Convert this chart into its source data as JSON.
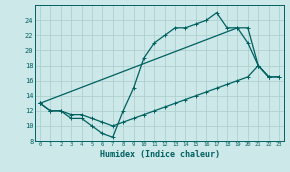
{
  "xlabel": "Humidex (Indice chaleur)",
  "color": "#006060",
  "bg_color": "#cce8e8",
  "grid_color": "#aacccc",
  "ylim": [
    8,
    26
  ],
  "yticks": [
    8,
    10,
    12,
    14,
    16,
    18,
    20,
    22,
    24
  ],
  "xlim": [
    -0.5,
    23.5
  ],
  "line1_x": [
    0,
    1,
    2,
    3,
    4,
    5,
    6,
    7,
    8,
    9,
    10,
    11,
    12,
    13,
    14,
    15,
    16,
    17,
    18,
    19,
    20,
    21,
    22
  ],
  "line1_y": [
    13,
    12,
    12,
    11,
    11,
    10,
    9,
    8.5,
    12,
    15,
    19,
    21,
    22,
    23,
    23,
    23.5,
    24,
    25,
    23,
    23,
    21,
    18,
    16.5
  ],
  "line2_x": [
    0,
    1,
    2,
    3,
    4,
    5,
    6,
    7,
    8,
    9,
    10,
    11,
    12,
    13,
    14,
    15,
    16,
    17,
    18,
    19,
    20,
    21,
    22,
    23
  ],
  "line2_y": [
    13,
    12,
    12,
    11.5,
    11.5,
    11,
    10.5,
    10,
    10.5,
    11,
    11.5,
    12,
    12.5,
    13,
    13.5,
    14,
    14.5,
    15,
    15.5,
    16,
    16.5,
    18,
    16.5,
    16.5
  ],
  "line3_x": [
    0,
    19,
    20,
    21,
    22,
    23
  ],
  "line3_y": [
    13,
    23,
    23,
    18,
    16.5,
    16.5
  ]
}
